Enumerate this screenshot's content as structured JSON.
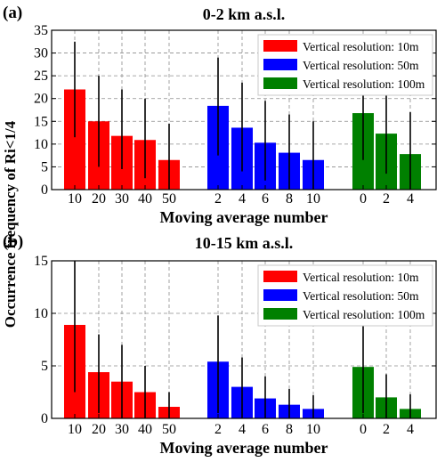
{
  "chart_data": [
    {
      "type": "bar",
      "panel_label": "(a)",
      "title": "0-2 km a.s.l.",
      "xlabel": "Moving average number",
      "ylabel": "Occurrence frequency of Ri<1/4",
      "ylim": [
        0,
        35
      ],
      "yticks": [
        0,
        5,
        10,
        15,
        20,
        25,
        30,
        35
      ],
      "grid": true,
      "legend_position": "top-right",
      "series": [
        {
          "name": "Vertical resolution: 10m",
          "color": "#ff0000",
          "categories": [
            "10",
            "20",
            "30",
            "40",
            "50"
          ],
          "values": [
            22.0,
            15.0,
            11.8,
            10.9,
            6.5
          ],
          "err_low": [
            11.5,
            5.0,
            4.5,
            2.5,
            0.0
          ],
          "err_high": [
            32.5,
            25.0,
            22.0,
            20.0,
            14.5
          ]
        },
        {
          "name": "Vertical resolution: 50m",
          "color": "#0000ff",
          "categories": [
            "2",
            "4",
            "6",
            "8",
            "10"
          ],
          "values": [
            18.4,
            13.6,
            10.3,
            8.1,
            6.5
          ],
          "err_low": [
            7.5,
            4.0,
            2.0,
            0.0,
            0.0
          ],
          "err_high": [
            29.0,
            23.5,
            19.5,
            16.5,
            15.0
          ]
        },
        {
          "name": "Vertical resolution: 100m",
          "color": "#008000",
          "categories": [
            "0",
            "2",
            "4"
          ],
          "values": [
            16.8,
            12.3,
            7.8
          ],
          "err_low": [
            6.5,
            3.5,
            0.0
          ],
          "err_high": [
            27.0,
            21.0,
            17.0
          ]
        }
      ]
    },
    {
      "type": "bar",
      "panel_label": "(b)",
      "title": "10-15 km a.s.l.",
      "xlabel": "Moving average number",
      "ylabel": "Occurrence frequency of Ri<1/4",
      "ylim": [
        0,
        15
      ],
      "yticks": [
        0,
        5,
        10,
        15
      ],
      "grid": true,
      "legend_position": "top-right",
      "series": [
        {
          "name": "Vertical resolution: 10m",
          "color": "#ff0000",
          "categories": [
            "10",
            "20",
            "30",
            "40",
            "50"
          ],
          "values": [
            8.9,
            4.4,
            3.5,
            2.5,
            1.1
          ],
          "err_low": [
            2.5,
            0.5,
            0.0,
            0.0,
            0.0
          ],
          "err_high": [
            15.0,
            8.0,
            7.0,
            5.0,
            2.5
          ]
        },
        {
          "name": "Vertical resolution: 50m",
          "color": "#0000ff",
          "categories": [
            "2",
            "4",
            "6",
            "8",
            "10"
          ],
          "values": [
            5.4,
            3.0,
            1.9,
            1.3,
            0.9
          ],
          "err_low": [
            0.5,
            0.0,
            0.0,
            0.0,
            0.0
          ],
          "err_high": [
            9.8,
            5.8,
            4.0,
            2.8,
            2.2
          ]
        },
        {
          "name": "Vertical resolution: 100m",
          "color": "#008000",
          "categories": [
            "0",
            "2",
            "4"
          ],
          "values": [
            4.9,
            2.0,
            0.9
          ],
          "err_low": [
            0.5,
            0.0,
            0.0
          ],
          "err_high": [
            9.0,
            4.2,
            2.3
          ]
        }
      ]
    }
  ]
}
